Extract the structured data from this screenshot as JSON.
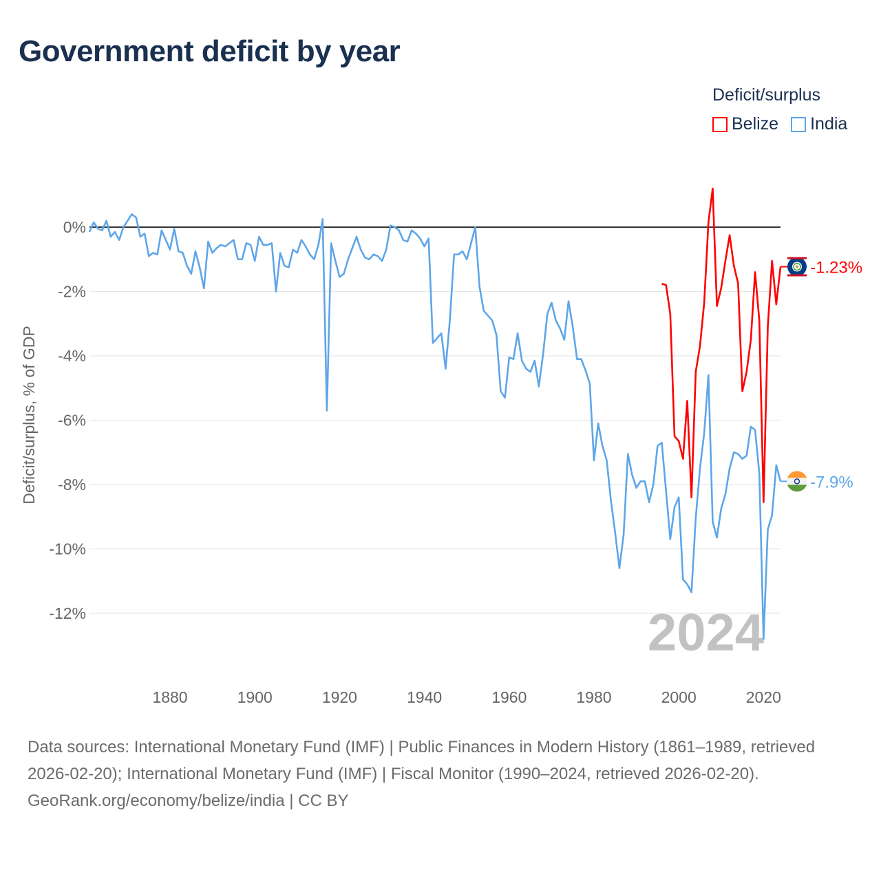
{
  "title": "Government deficit by year",
  "legend": {
    "title": "Deficit/surplus",
    "items": [
      {
        "label": "Belize",
        "color": "#ff0000"
      },
      {
        "label": "India",
        "color": "#5ea6e8"
      }
    ]
  },
  "footer": {
    "sources": "Data sources: International Monetary Fund (IMF) | Public Finances in Modern History (1861–1989, retrieved 2026-02-20); International Monetary Fund (IMF) | Fiscal Monitor (1990–2024, retrieved 2026-02-20).",
    "credit": "GeoRank.org/economy/belize/india | CC BY"
  },
  "chart_data": {
    "type": "line",
    "title": "Government deficit by year",
    "xlabel": "",
    "ylabel": "Deficit/surplus, % of GDP",
    "xlim": [
      1861,
      2024
    ],
    "ylim": [
      -13,
      1.5
    ],
    "x_ticks": [
      1880,
      1900,
      1920,
      1940,
      1960,
      1980,
      2000,
      2020
    ],
    "y_ticks": [
      0,
      -2,
      -4,
      -6,
      -8,
      -10,
      -12
    ],
    "y_tick_labels": [
      "0%",
      "-2%",
      "-4%",
      "-6%",
      "-8%",
      "-10%",
      "-12%"
    ],
    "grid": true,
    "legend_position": "top-right",
    "year_watermark": "2024",
    "series": [
      {
        "name": "Belize",
        "color": "#ff0000",
        "start_year": 1996,
        "end_label": "-1.23%",
        "values": [
          -1.76,
          -1.8,
          -2.7,
          -6.5,
          -6.65,
          -7.2,
          -5.4,
          -8.4,
          -4.5,
          -3.7,
          -2.35,
          0.15,
          1.2,
          -2.45,
          -1.9,
          -1.05,
          -0.25,
          -1.2,
          -1.75,
          -5.1,
          -4.5,
          -3.5,
          -1.4,
          -2.9,
          -8.55,
          -3.1,
          -1.05,
          -2.4,
          -1.23
        ]
      },
      {
        "name": "India",
        "color": "#5ea6e8",
        "start_year": 1861,
        "end_label": "-7.9%",
        "values": [
          -0.15,
          0.15,
          -0.05,
          -0.1,
          0.2,
          -0.3,
          -0.15,
          -0.4,
          0,
          0.2,
          0.4,
          0.3,
          -0.3,
          -0.2,
          -0.9,
          -0.8,
          -0.85,
          -0.1,
          -0.4,
          -0.7,
          -0.05,
          -0.75,
          -0.8,
          -1.2,
          -1.45,
          -0.75,
          -1.25,
          -1.9,
          -0.45,
          -0.8,
          -0.65,
          -0.55,
          -0.6,
          -0.5,
          -0.4,
          -1.0,
          -1.0,
          -0.5,
          -0.55,
          -1.05,
          -0.3,
          -0.55,
          -0.55,
          -0.5,
          -2.0,
          -0.8,
          -1.2,
          -1.25,
          -0.7,
          -0.8,
          -0.4,
          -0.6,
          -0.85,
          -1.0,
          -0.55,
          0.25,
          -5.7,
          -0.5,
          -1.05,
          -1.55,
          -1.45,
          -1.0,
          -0.65,
          -0.3,
          -0.7,
          -0.95,
          -1.0,
          -0.85,
          -0.9,
          -1.05,
          -0.7,
          0.05,
          0,
          -0.1,
          -0.4,
          -0.45,
          -0.1,
          -0.2,
          -0.35,
          -0.6,
          -0.35,
          -3.6,
          -3.45,
          -3.3,
          -4.4,
          -2.9,
          -0.85,
          -0.85,
          -0.75,
          -1.0,
          -0.5,
          0,
          -1.85,
          -2.6,
          -2.75,
          -2.9,
          -3.35,
          -5.1,
          -5.3,
          -4.05,
          -4.1,
          -3.3,
          -4.15,
          -4.4,
          -4.5,
          -4.15,
          -4.95,
          -3.95,
          -2.7,
          -2.35,
          -2.9,
          -3.15,
          -3.5,
          -2.3,
          -3.1,
          -4.1,
          -4.1,
          -4.45,
          -4.85,
          -7.25,
          -6.1,
          -6.8,
          -7.25,
          -8.5,
          -9.5,
          -10.6,
          -9.55,
          -7.05,
          -7.7,
          -8.1,
          -7.9,
          -7.9,
          -8.55,
          -8.0,
          -6.8,
          -6.7,
          -8.2,
          -9.7,
          -8.7,
          -8.4,
          -10.95,
          -11.1,
          -11.35,
          -9.05,
          -7.5,
          -6.4,
          -4.6,
          -9.15,
          -9.65,
          -8.75,
          -8.3,
          -7.5,
          -7.0,
          -7.05,
          -7.2,
          -7.1,
          -6.2,
          -6.3,
          -7.65,
          -12.8,
          -9.4,
          -8.95,
          -7.4,
          -7.9
        ]
      }
    ]
  }
}
